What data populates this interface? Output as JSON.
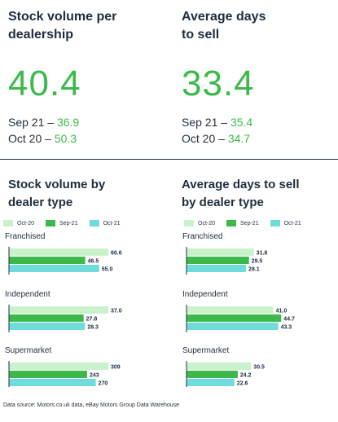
{
  "kpis": {
    "stock": {
      "title_line1": "Stock volume per",
      "title_line2": "dealership",
      "value": "40.4",
      "row1_label": "Sep 21 – ",
      "row1_value": "36.9",
      "row2_label": "Oct 20 – ",
      "row2_value": "50.3"
    },
    "days": {
      "title_line1": "Average days",
      "title_line2": "to sell",
      "value": "33.4",
      "row1_label": "Sep 21 – ",
      "row1_value": "35.4",
      "row2_label": "Oct 20 – ",
      "row2_value": "34.7"
    }
  },
  "colors": {
    "oct20": "#c9f2cb",
    "sep21": "#3cb94a",
    "oct21": "#6fdcdc",
    "green_text": "#3cb94a",
    "dark_text": "#1f2d3d"
  },
  "legend": [
    "Oct-20",
    "Sep-21",
    "Oct-21"
  ],
  "chart_data": [
    {
      "type": "bar",
      "orientation": "horizontal",
      "title": "Stock volume by dealer type",
      "title_line1": "Stock volume by",
      "title_line2": "dealer type",
      "categories": [
        "Franchised",
        "Independent",
        "Supermarket"
      ],
      "series": [
        {
          "name": "Oct-20",
          "values": [
            60.6,
            37.0,
            309
          ]
        },
        {
          "name": "Sep-21",
          "values": [
            46.5,
            27.8,
            243
          ]
        },
        {
          "name": "Oct-21",
          "values": [
            55.0,
            28.3,
            270
          ]
        }
      ],
      "labels": [
        [
          "60.6",
          "46.5",
          "55.0"
        ],
        [
          "37.0",
          "27.8",
          "28.3"
        ],
        [
          "309",
          "243",
          "270"
        ]
      ],
      "group_max": [
        60.6,
        37.0,
        309
      ],
      "legend_position": "top"
    },
    {
      "type": "bar",
      "orientation": "horizontal",
      "title": "Average days to sell by dealer type",
      "title_line1": "Average days to sell",
      "title_line2": "by dealer type",
      "categories": [
        "Franchised",
        "Independent",
        "Supermarket"
      ],
      "series": [
        {
          "name": "Oct-20",
          "values": [
            31.8,
            41.0,
            30.5
          ]
        },
        {
          "name": "Sep-21",
          "values": [
            29.5,
            44.7,
            24.2
          ]
        },
        {
          "name": "Oct-21",
          "values": [
            28.1,
            43.3,
            22.6
          ]
        }
      ],
      "labels": [
        [
          "31.8",
          "29.5",
          "28.1"
        ],
        [
          "41.0",
          "44.7",
          "43.3"
        ],
        [
          "30.5",
          "24.2",
          "22.6"
        ]
      ],
      "xlim": [
        0,
        50
      ],
      "legend_position": "top"
    }
  ],
  "source": "Data source: Motors.co.uk data, eBay Motors Group Data Warehouse"
}
